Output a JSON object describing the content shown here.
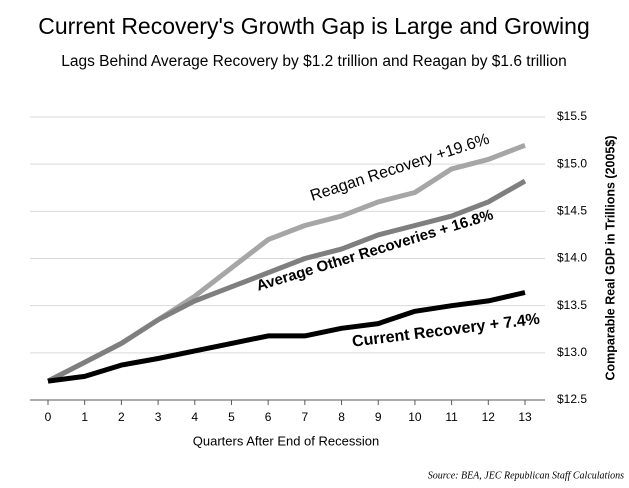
{
  "chart_data": {
    "type": "line",
    "title": "Current Recovery's Growth Gap is Large and Growing",
    "subtitle": "Lags Behind Average Recovery by $1.2 trillion and Reagan by $1.6 trillion",
    "x_label": "Quarters After End of Recession",
    "y_label": "Comparable Real GDP in Trillions (2005$)",
    "source": "Source:  BEA, JEC Republican Staff Calculations",
    "x": [
      0,
      1,
      2,
      3,
      4,
      5,
      6,
      7,
      8,
      9,
      10,
      11,
      12,
      13
    ],
    "xlim": [
      0,
      13
    ],
    "xticks": [
      0,
      1,
      2,
      3,
      4,
      5,
      6,
      7,
      8,
      9,
      10,
      11,
      12,
      13
    ],
    "ylim": [
      12.5,
      15.5
    ],
    "yticks": [
      {
        "value": 12.5,
        "label": "$12.5"
      },
      {
        "value": 13,
        "label": "$13.0"
      },
      {
        "value": 13.5,
        "label": "$13.5"
      },
      {
        "value": 14,
        "label": "$14.0"
      },
      {
        "value": 14.5,
        "label": "$14.5"
      },
      {
        "value": 15,
        "label": "$15.0"
      },
      {
        "value": 15.5,
        "label": "$15.5"
      }
    ],
    "grid": true,
    "series": [
      {
        "name": "Reagan Recovery +19.6%",
        "color": "#a6a6a6",
        "values": [
          12.7,
          12.9,
          13.1,
          13.35,
          13.6,
          13.9,
          14.2,
          14.35,
          14.45,
          14.6,
          14.7,
          14.95,
          15.05,
          15.2
        ]
      },
      {
        "name": "Average Other Recoveries + 16.8%",
        "color": "#7f7f7f",
        "values": [
          12.7,
          12.9,
          13.1,
          13.35,
          13.55,
          13.7,
          13.85,
          14.0,
          14.1,
          14.25,
          14.35,
          14.45,
          14.6,
          14.82
        ]
      },
      {
        "name": "Current Recovery + 7.4%",
        "color": "#000000",
        "values": [
          12.7,
          12.75,
          12.87,
          12.94,
          13.02,
          13.1,
          13.18,
          13.18,
          13.26,
          13.31,
          13.44,
          13.5,
          13.55,
          13.64
        ]
      }
    ]
  }
}
